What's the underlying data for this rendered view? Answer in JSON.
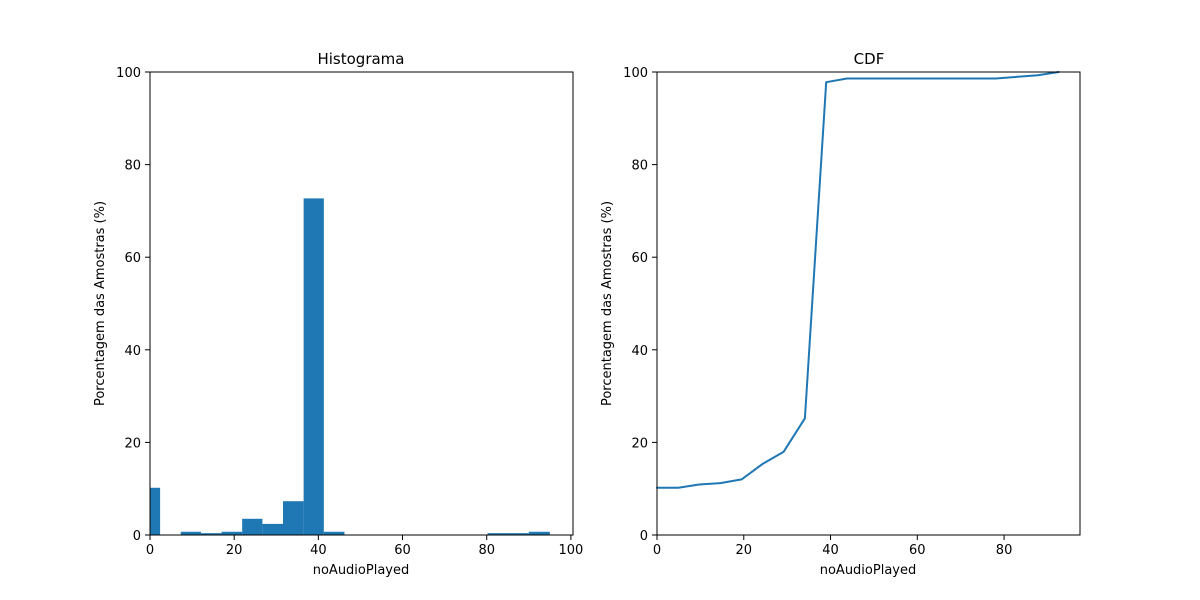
{
  "colors": {
    "series": "#1f77b4",
    "axes": "#000000",
    "background": "#ffffff"
  },
  "chart_data": [
    {
      "type": "bar",
      "title": "Histograma",
      "xlabel": "noAudioPlayed",
      "ylabel": "Porcentagem das Amostras (%)",
      "xlim": [
        0,
        100.5
      ],
      "ylim": [
        0,
        100
      ],
      "xticks": [
        "0",
        "20",
        "40",
        "60",
        "80",
        "100"
      ],
      "yticks": [
        "0",
        "20",
        "40",
        "60",
        "80",
        "100"
      ],
      "grid": false,
      "bins": [
        {
          "x0": 0.0,
          "x1": 2.4,
          "value": 10.2
        },
        {
          "x0": 7.3,
          "x1": 12.1,
          "value": 0.7
        },
        {
          "x0": 12.1,
          "x1": 17.0,
          "value": 0.4
        },
        {
          "x0": 17.0,
          "x1": 21.9,
          "value": 0.7
        },
        {
          "x0": 21.9,
          "x1": 26.7,
          "value": 3.5
        },
        {
          "x0": 26.7,
          "x1": 31.6,
          "value": 2.4
        },
        {
          "x0": 31.6,
          "x1": 36.5,
          "value": 7.3
        },
        {
          "x0": 36.5,
          "x1": 41.3,
          "value": 72.7
        },
        {
          "x0": 41.3,
          "x1": 46.2,
          "value": 0.7
        },
        {
          "x0": 80.2,
          "x1": 90.0,
          "value": 0.4
        },
        {
          "x0": 90.0,
          "x1": 95.0,
          "value": 0.7
        }
      ]
    },
    {
      "type": "line",
      "title": "CDF",
      "xlabel": "noAudioPlayed",
      "ylabel": "Porcentagem das Amostras (%)",
      "xlim": [
        0,
        97.5
      ],
      "ylim": [
        0,
        100
      ],
      "xticks": [
        "0",
        "20",
        "40",
        "60",
        "80"
      ],
      "yticks": [
        "0",
        "20",
        "40",
        "60",
        "80",
        "100"
      ],
      "grid": false,
      "x": [
        0,
        4.9,
        9.7,
        14.6,
        19.5,
        24.4,
        29.2,
        34.1,
        39.0,
        43.8,
        48.7,
        78.0,
        87.8,
        92.6
      ],
      "y": [
        10.2,
        10.2,
        10.9,
        11.2,
        12.0,
        15.4,
        18.0,
        25.2,
        97.8,
        98.6,
        98.6,
        98.6,
        99.3,
        100.0
      ]
    }
  ]
}
